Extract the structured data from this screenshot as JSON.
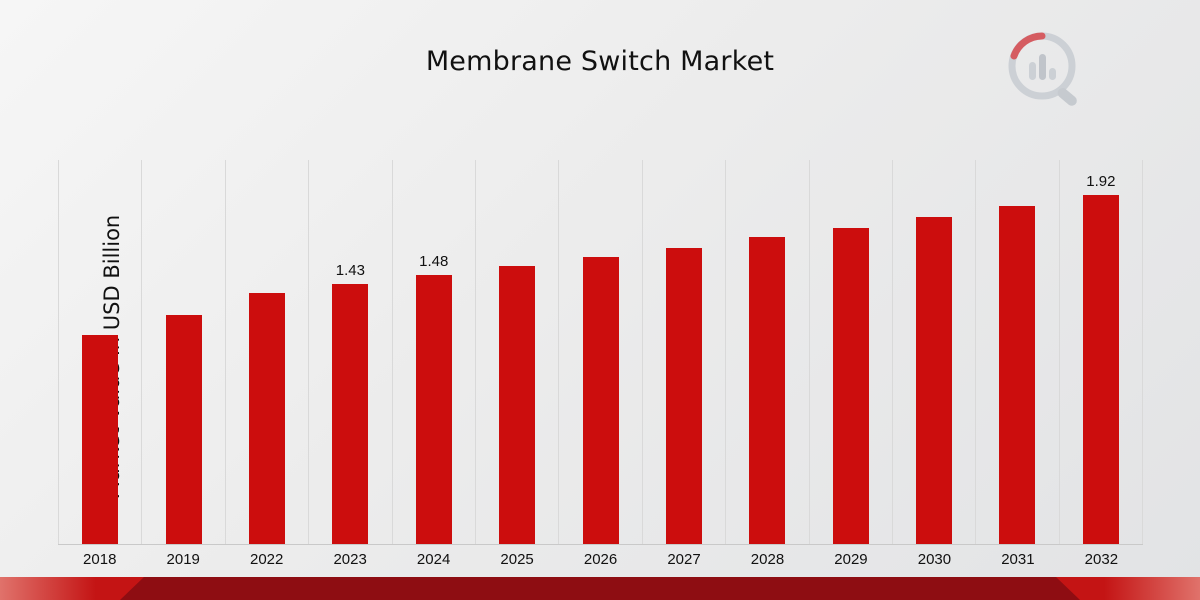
{
  "title": "Membrane Switch Market",
  "ylabel": "Market Value in USD Billion",
  "chart_data": {
    "type": "bar",
    "categories": [
      "2018",
      "2019",
      "2022",
      "2023",
      "2024",
      "2025",
      "2026",
      "2027",
      "2028",
      "2029",
      "2030",
      "2031",
      "2032"
    ],
    "values": [
      1.15,
      1.26,
      1.38,
      1.43,
      1.48,
      1.53,
      1.58,
      1.63,
      1.69,
      1.74,
      1.8,
      1.86,
      1.92
    ],
    "data_labels": {
      "2023": "1.43",
      "2024": "1.48",
      "2032": "1.92"
    },
    "bar_color": "#cc0d0d",
    "ylim": [
      0,
      2.1
    ],
    "grid": "vertical",
    "legend": "none"
  },
  "logo": {
    "name": "market-research-logo"
  }
}
